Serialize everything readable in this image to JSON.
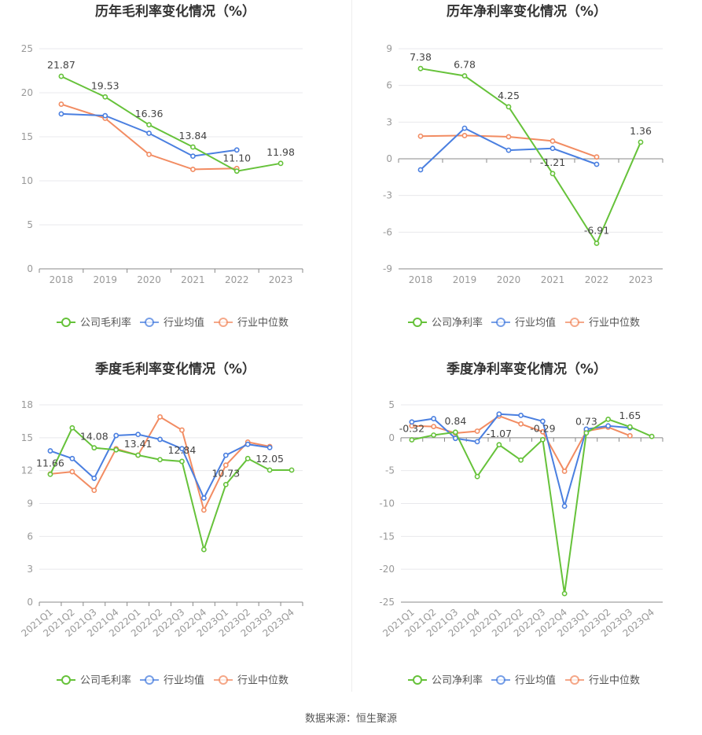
{
  "source": "数据来源：恒生聚源",
  "colors": {
    "company": "#66c23a",
    "avg": "#4a7fe0",
    "median": "#f28c62"
  },
  "chart_data": [
    {
      "id": "annual-gross",
      "type": "line",
      "title": "历年毛利率变化情况（%）",
      "categories": [
        "2018",
        "2019",
        "2020",
        "2021",
        "2022",
        "2023"
      ],
      "ylim": [
        0,
        25
      ],
      "yticks": [
        0,
        5,
        10,
        15,
        20,
        25
      ],
      "series": [
        {
          "name": "公司毛利率",
          "values": [
            21.87,
            19.53,
            16.36,
            13.84,
            11.1,
            11.98
          ]
        },
        {
          "name": "行业均值",
          "values": [
            17.6,
            17.4,
            15.4,
            12.8,
            13.5,
            null
          ]
        },
        {
          "name": "行业中位数",
          "values": [
            18.7,
            17.1,
            13.0,
            11.3,
            11.4,
            null
          ]
        }
      ],
      "labels": [
        {
          "i": 0,
          "text": "21.87"
        },
        {
          "i": 1,
          "text": "19.53"
        },
        {
          "i": 2,
          "text": "16.36"
        },
        {
          "i": 3,
          "text": "13.84"
        },
        {
          "i": 4,
          "text": "11.10"
        },
        {
          "i": 5,
          "text": "11.98"
        }
      ]
    },
    {
      "id": "annual-net",
      "type": "line",
      "title": "历年净利率变化情况（%）",
      "categories": [
        "2018",
        "2019",
        "2020",
        "2021",
        "2022",
        "2023"
      ],
      "ylim": [
        -9,
        9
      ],
      "yticks": [
        -9,
        -6,
        -3,
        0,
        3,
        6,
        9
      ],
      "series": [
        {
          "name": "公司净利率",
          "values": [
            7.38,
            6.78,
            4.25,
            -1.21,
            -6.91,
            1.36
          ]
        },
        {
          "name": "行业均值",
          "values": [
            -0.9,
            2.5,
            0.7,
            0.85,
            -0.45,
            null
          ]
        },
        {
          "name": "行业中位数",
          "values": [
            1.85,
            1.9,
            1.8,
            1.45,
            0.15,
            null
          ]
        }
      ],
      "labels": [
        {
          "i": 0,
          "text": "7.38"
        },
        {
          "i": 1,
          "text": "6.78"
        },
        {
          "i": 2,
          "text": "4.25"
        },
        {
          "i": 3,
          "text": "-1.21"
        },
        {
          "i": 4,
          "text": "-6.91"
        },
        {
          "i": 5,
          "text": "1.36"
        }
      ]
    },
    {
      "id": "quarterly-gross",
      "type": "line",
      "title": "季度毛利率变化情况（%）",
      "categories": [
        "2021Q1",
        "2021Q2",
        "2021Q3",
        "2021Q4",
        "2022Q1",
        "2022Q2",
        "2022Q3",
        "2022Q4",
        "2023Q1",
        "2023Q2",
        "2023Q3",
        "2023Q4"
      ],
      "ylim": [
        0,
        18
      ],
      "yticks": [
        0,
        3,
        6,
        9,
        12,
        15,
        18
      ],
      "series": [
        {
          "name": "公司毛利率",
          "values": [
            11.66,
            15.9,
            14.08,
            13.9,
            13.41,
            13.0,
            12.84,
            4.8,
            10.73,
            13.1,
            12.05,
            12.05
          ]
        },
        {
          "name": "行业均值",
          "values": [
            13.8,
            13.1,
            11.3,
            15.2,
            15.3,
            14.85,
            14.0,
            9.5,
            13.4,
            14.4,
            14.1,
            null
          ]
        },
        {
          "name": "行业中位数",
          "values": [
            11.7,
            11.9,
            10.2,
            14.0,
            13.4,
            16.9,
            15.7,
            8.4,
            12.5,
            14.6,
            14.2,
            null
          ]
        }
      ],
      "labels": [
        {
          "i": 0,
          "text": "11.66"
        },
        {
          "i": 2,
          "text": "14.08"
        },
        {
          "i": 4,
          "text": "13.41"
        },
        {
          "i": 6,
          "text": "12.84"
        },
        {
          "i": 8,
          "text": "10.73"
        },
        {
          "i": 10,
          "text": "12.05"
        }
      ]
    },
    {
      "id": "quarterly-net",
      "type": "line",
      "title": "季度净利率变化情况（%）",
      "categories": [
        "2021Q1",
        "2021Q2",
        "2021Q3",
        "2021Q4",
        "2022Q1",
        "2022Q2",
        "2022Q3",
        "2022Q4",
        "2023Q1",
        "2023Q2",
        "2023Q3",
        "2023Q4"
      ],
      "ylim": [
        -25,
        5
      ],
      "yticks": [
        -25,
        -20,
        -15,
        -10,
        -5,
        0,
        5
      ],
      "series": [
        {
          "name": "公司净利率",
          "values": [
            -0.32,
            0.4,
            0.84,
            -5.9,
            -1.07,
            -3.4,
            -0.29,
            -23.7,
            0.73,
            2.8,
            1.65,
            0.2
          ]
        },
        {
          "name": "行业均值",
          "values": [
            2.4,
            2.9,
            -0.1,
            -0.6,
            3.6,
            3.4,
            2.5,
            -10.4,
            1.3,
            1.8,
            1.5,
            null
          ]
        },
        {
          "name": "行业中位数",
          "values": [
            1.8,
            1.7,
            0.7,
            1.0,
            3.3,
            2.1,
            0.9,
            -5.1,
            1.0,
            1.6,
            0.3,
            null
          ]
        }
      ],
      "labels": [
        {
          "i": 0,
          "text": "-0.32"
        },
        {
          "i": 2,
          "text": "0.84"
        },
        {
          "i": 4,
          "text": "-1.07"
        },
        {
          "i": 6,
          "text": "-0.29"
        },
        {
          "i": 8,
          "text": "0.73"
        },
        {
          "i": 10,
          "text": "1.65"
        }
      ]
    }
  ]
}
